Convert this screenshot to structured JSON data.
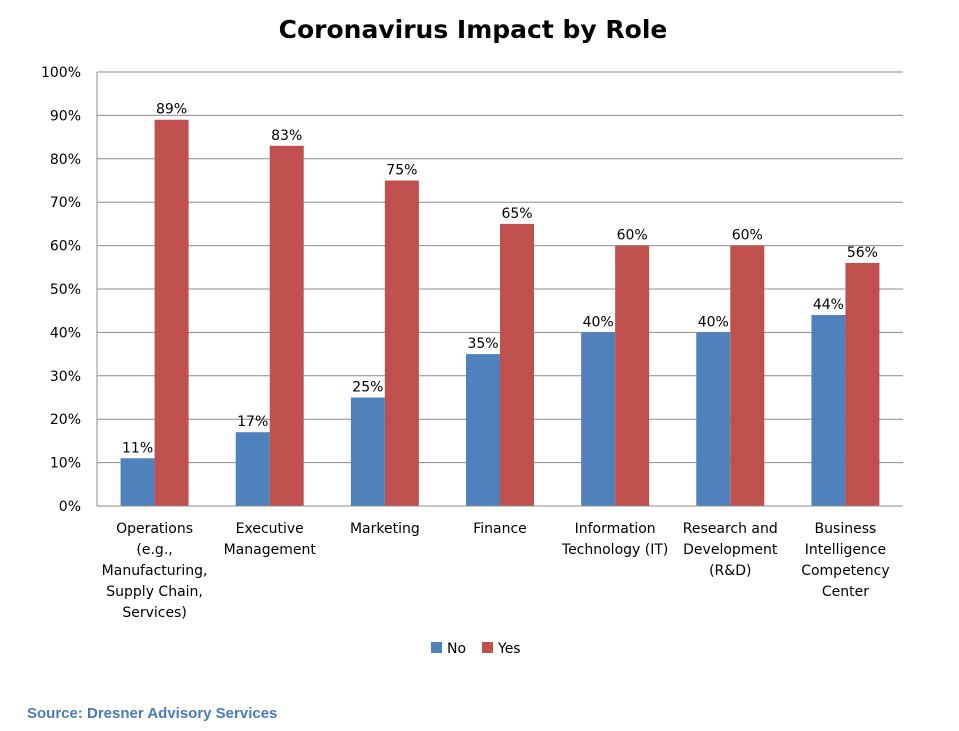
{
  "source_note": "Source: Dresner Advisory Services",
  "chart_data": {
    "type": "bar",
    "title": "Coronavirus Impact by Role",
    "xlabel": "",
    "ylabel": "",
    "ylim": [
      0,
      100
    ],
    "yticks": [
      0,
      10,
      20,
      30,
      40,
      50,
      60,
      70,
      80,
      90,
      100
    ],
    "ytick_suffix": "%",
    "grid": true,
    "legend_position": "bottom-center",
    "categories": [
      "Operations (e.g., Manufacturing, Supply Chain, Services)",
      "Executive Management",
      "Marketing",
      "Finance",
      "Information Technology (IT)",
      "Research and Development (R&D)",
      "Business Intelligence Competency Center"
    ],
    "category_lines": [
      [
        "Operations",
        "(e.g.,",
        "Manufacturing,",
        "Supply Chain,",
        "Services)"
      ],
      [
        "Executive",
        "Management"
      ],
      [
        "Marketing"
      ],
      [
        "Finance"
      ],
      [
        "Information",
        "Technology (IT)"
      ],
      [
        "Research and",
        "Development",
        "(R&D)"
      ],
      [
        "Business",
        "Intelligence",
        "Competency",
        "Center"
      ]
    ],
    "series": [
      {
        "name": "No",
        "color": "#4f81bd",
        "values": [
          11,
          17,
          25,
          35,
          40,
          40,
          44
        ]
      },
      {
        "name": "Yes",
        "color": "#c0504d",
        "values": [
          89,
          83,
          75,
          65,
          60,
          60,
          56
        ]
      }
    ]
  }
}
